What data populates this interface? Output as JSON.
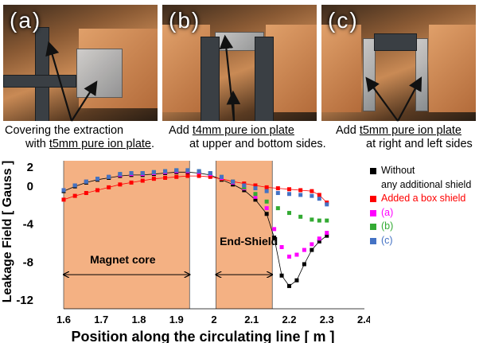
{
  "panels": [
    {
      "label": "(a)",
      "caption_line1_pre": "Covering the extraction",
      "caption_line2_pre": "with ",
      "caption_line2_u": "t5mm pure ion plate",
      "caption_line2_post": "."
    },
    {
      "label": "(b)",
      "caption_line1_pre": "Add ",
      "caption_line1_u": "t4mm pure ion plate",
      "caption_line2_pre": "at upper and bottom sides.",
      "caption_line2_u": "",
      "caption_line2_post": ""
    },
    {
      "label": "(c)",
      "caption_line1_pre": "Add ",
      "caption_line1_u": "t5mm pure ion plate",
      "caption_line2_pre": "at right and left sides",
      "caption_line2_u": "",
      "caption_line2_post": ""
    }
  ],
  "legend": [
    {
      "line1": "Without",
      "line2": "any additional shield",
      "color": "#000000"
    },
    {
      "line1": "Added a box shield",
      "color": "#ff0000"
    },
    {
      "line1": "(a)",
      "color": "#ff00ff"
    },
    {
      "line1": "(b)",
      "color": "#33aa33"
    },
    {
      "line1": "(c)",
      "color": "#4472c4"
    }
  ],
  "chart_data": {
    "type": "line",
    "xlabel": "Position along the circulating line  [ m ]",
    "ylabel": "Leakage Field  [ Gauss ]",
    "xlim": [
      1.6,
      2.4
    ],
    "ylim": [
      -13,
      2.6
    ],
    "xticks": [
      "1.6",
      "1.7",
      "1.8",
      "1.9",
      "2",
      "2.1",
      "2.2",
      "2.3",
      "2.4"
    ],
    "yticks": [
      "2",
      "0",
      "-4",
      "-8",
      "-12"
    ],
    "ytick_values": [
      2,
      0,
      -4,
      -8,
      -12
    ],
    "regions": [
      {
        "x0": 1.6,
        "x1": 1.935,
        "color": "#f4b183"
      },
      {
        "x0": 2.005,
        "x1": 2.155,
        "color": "#f4b183"
      }
    ],
    "annotations": [
      {
        "text": "Magnet core",
        "x": 1.67,
        "y": -8.2,
        "arrow_x0": 1.6,
        "arrow_x1": 1.935,
        "arrow_y": -9.4
      },
      {
        "text": "End-Shield",
        "x": 2.015,
        "y": -6.3,
        "arrow_x0": 2.005,
        "arrow_x1": 2.155,
        "arrow_y": -9.4
      }
    ],
    "series": [
      {
        "name": "Without any additional shield",
        "color": "#000000",
        "line": true,
        "x": [
          1.6,
          1.63,
          1.66,
          1.69,
          1.72,
          1.75,
          1.78,
          1.81,
          1.84,
          1.87,
          1.9,
          1.93,
          1.96,
          1.99,
          2.02,
          2.05,
          2.08,
          2.11,
          2.14,
          2.16,
          2.18,
          2.2,
          2.22,
          2.24,
          2.26,
          2.28,
          2.3
        ],
        "y": [
          -0.6,
          -0.1,
          0.3,
          0.6,
          0.8,
          1.0,
          1.1,
          1.1,
          1.2,
          1.3,
          1.4,
          1.4,
          1.3,
          1.1,
          0.6,
          0.1,
          -0.5,
          -1.5,
          -3.0,
          -5.5,
          -9.5,
          -10.6,
          -10.0,
          -8.3,
          -6.8,
          -5.9,
          -5.3
        ]
      },
      {
        "name": "Added a box shield",
        "color": "#ff0000",
        "line": true,
        "x": [
          1.6,
          1.63,
          1.66,
          1.69,
          1.72,
          1.75,
          1.78,
          1.81,
          1.84,
          1.87,
          1.9,
          1.93,
          1.96,
          1.99,
          2.02,
          2.05,
          2.08,
          2.11,
          2.14,
          2.17,
          2.2,
          2.23,
          2.26,
          2.28,
          2.3
        ],
        "y": [
          -1.5,
          -1.1,
          -0.8,
          -0.5,
          -0.2,
          0.1,
          0.3,
          0.5,
          0.7,
          0.8,
          0.9,
          1.0,
          1.0,
          0.9,
          0.7,
          0.4,
          0.2,
          0.0,
          -0.2,
          -0.3,
          -0.4,
          -0.5,
          -0.6,
          -1.0,
          -1.8
        ]
      },
      {
        "name": "(a)",
        "color": "#ff00ff",
        "line": false,
        "x": [
          1.6,
          1.63,
          1.66,
          1.69,
          1.72,
          1.75,
          1.78,
          1.81,
          1.84,
          1.87,
          1.9,
          1.93,
          1.96,
          1.99,
          2.02,
          2.05,
          2.08,
          2.11,
          2.14,
          2.16,
          2.18,
          2.2,
          2.22,
          2.24,
          2.26,
          2.28,
          2.3
        ],
        "y": [
          -0.5,
          0.0,
          0.4,
          0.7,
          0.9,
          1.1,
          1.2,
          1.2,
          1.3,
          1.4,
          1.5,
          1.5,
          1.4,
          1.2,
          0.8,
          0.3,
          -0.3,
          -1.2,
          -2.4,
          -4.6,
          -6.5,
          -7.5,
          -7.3,
          -6.8,
          -6.2,
          -5.6,
          -5.0
        ]
      },
      {
        "name": "(b)",
        "color": "#33aa33",
        "line": false,
        "x": [
          1.6,
          1.63,
          1.66,
          1.69,
          1.72,
          1.75,
          1.78,
          1.81,
          1.84,
          1.87,
          1.9,
          1.93,
          1.96,
          1.99,
          2.02,
          2.05,
          2.08,
          2.11,
          2.14,
          2.17,
          2.2,
          2.23,
          2.26,
          2.28,
          2.3
        ],
        "y": [
          -0.5,
          0.0,
          0.4,
          0.7,
          0.9,
          1.2,
          1.3,
          1.3,
          1.4,
          1.5,
          1.6,
          1.6,
          1.5,
          1.3,
          0.9,
          0.4,
          -0.2,
          -0.9,
          -1.7,
          -2.4,
          -2.9,
          -3.3,
          -3.6,
          -3.7,
          -3.7
        ]
      },
      {
        "name": "(c)",
        "color": "#4472c4",
        "line": false,
        "x": [
          1.6,
          1.63,
          1.66,
          1.69,
          1.72,
          1.75,
          1.78,
          1.81,
          1.84,
          1.87,
          1.9,
          1.93,
          1.96,
          1.99,
          2.02,
          2.05,
          2.08,
          2.11,
          2.14,
          2.17,
          2.2,
          2.23,
          2.26,
          2.28,
          2.3
        ],
        "y": [
          -0.5,
          0.0,
          0.4,
          0.7,
          0.9,
          1.2,
          1.3,
          1.3,
          1.4,
          1.5,
          1.6,
          1.6,
          1.5,
          1.3,
          0.9,
          0.4,
          0.0,
          -0.3,
          -0.6,
          -0.8,
          -0.9,
          -1.0,
          -1.1,
          -1.4,
          -2.0
        ]
      }
    ]
  }
}
